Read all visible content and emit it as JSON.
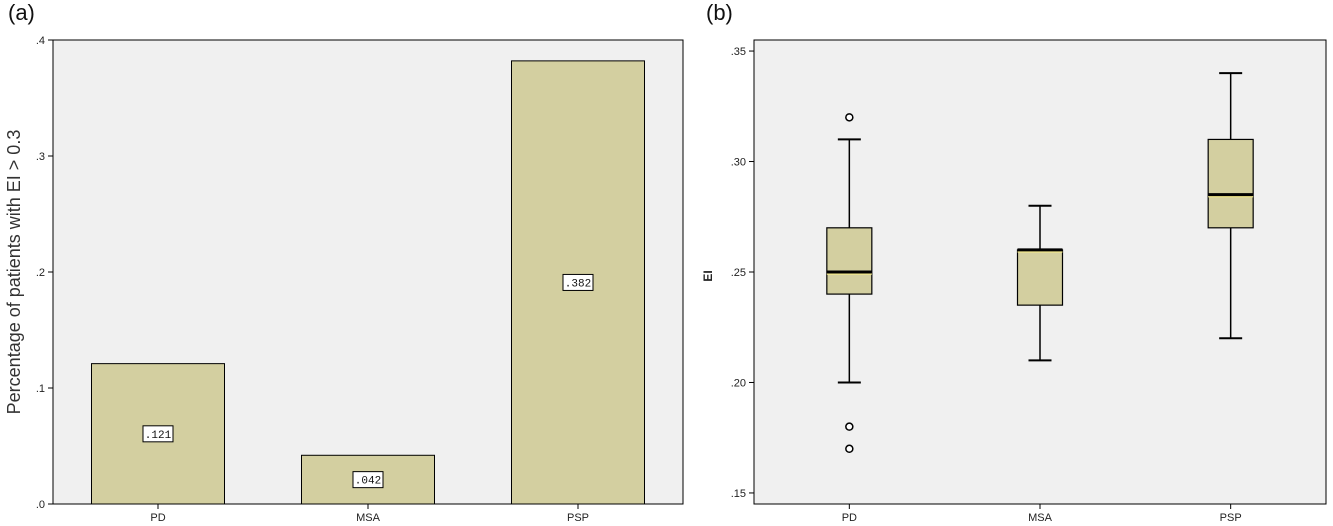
{
  "panels": {
    "a_label": "(a)",
    "b_label": "(b)"
  },
  "colors": {
    "plot_bg": "#f0f0f0",
    "bar_fill": "#d3cfa0",
    "stroke": "#000000",
    "median_highlight": "#f2e88a"
  },
  "chart_data": [
    {
      "type": "bar",
      "ylabel": "Percentage of patients with EI > 0.3",
      "xlabel": "",
      "categories": [
        "PD",
        "MSA",
        "PSP"
      ],
      "values": [
        0.121,
        0.042,
        0.382
      ],
      "value_labels": [
        ".121",
        ".042",
        ".382"
      ],
      "ylim": [
        0,
        0.4
      ],
      "yticks": [
        0,
        0.1,
        0.2,
        0.3,
        0.4
      ],
      "ytick_labels": [
        ".0",
        ".1",
        ".2",
        ".3",
        ".4"
      ],
      "grid": false,
      "legend": "none"
    },
    {
      "type": "box",
      "ylabel": "EI",
      "xlabel": "",
      "categories": [
        "PD",
        "MSA",
        "PSP"
      ],
      "boxes": [
        {
          "whisker_low": 0.2,
          "q1": 0.24,
          "median": 0.25,
          "q3": 0.27,
          "whisker_high": 0.31,
          "outliers": [
            0.32,
            0.18,
            0.17
          ]
        },
        {
          "whisker_low": 0.21,
          "q1": 0.235,
          "median": 0.26,
          "q3": 0.26,
          "whisker_high": 0.28,
          "outliers": []
        },
        {
          "whisker_low": 0.22,
          "q1": 0.27,
          "median": 0.285,
          "q3": 0.31,
          "whisker_high": 0.34,
          "outliers": []
        }
      ],
      "ylim": [
        0.145,
        0.355
      ],
      "yticks": [
        0.15,
        0.2,
        0.25,
        0.3,
        0.35
      ],
      "ytick_labels": [
        ".15",
        ".20",
        ".25",
        ".30",
        ".35"
      ],
      "grid": false,
      "legend": "none"
    }
  ]
}
